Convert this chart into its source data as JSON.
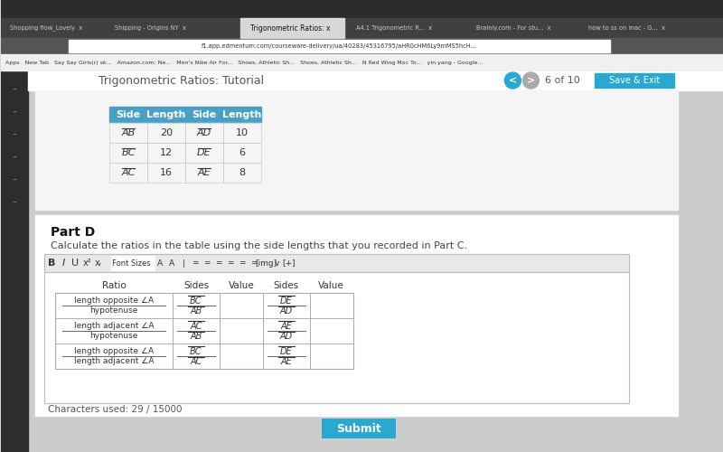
{
  "bg_color": "#e8e8e8",
  "page_bg": "#f0f0f0",
  "browser_bar_color": "#3c3c3c",
  "title": "Trigonometric Ratios: Tutorial",
  "nav_text": "6 of 10",
  "top_table": {
    "headers": [
      "Side",
      "Length",
      "Side",
      "Length"
    ],
    "header_bg": "#4a9fc4",
    "header_fg": "white",
    "rows": [
      [
        "AB",
        "20",
        "AD",
        "10"
      ],
      [
        "BC",
        "12",
        "DE",
        "6"
      ],
      [
        "AC",
        "16",
        "AE",
        "8"
      ]
    ],
    "overline_cells": [
      0,
      2
    ]
  },
  "part_d_label": "Part D",
  "part_d_desc": "Calculate the ratios in the table using the side lengths that you recorded in Part C.",
  "ratio_table": {
    "col_headers": [
      "Ratio",
      "Sides",
      "Value",
      "Sides",
      "Value"
    ],
    "rows": [
      {
        "ratio_top": "length opposite ∠A",
        "ratio_bottom": "hypotenuse",
        "sides1_top": "BC",
        "sides1_bottom": "AB",
        "sides2_top": "DE",
        "sides2_bottom": "AD"
      },
      {
        "ratio_top": "length adjacent ∠A",
        "ratio_bottom": "hypotenuse",
        "sides1_top": "AC",
        "sides1_bottom": "AB",
        "sides2_top": "AE",
        "sides2_bottom": "AD"
      },
      {
        "ratio_top": "length opposite ∠A",
        "ratio_bottom": "length adjacent ∠A",
        "sides1_top": "BC",
        "sides1_bottom": "AC",
        "sides2_top": "DE",
        "sides2_bottom": "AE"
      }
    ]
  },
  "chars_used": "Characters used: 29 / 15000",
  "submit_text": "Submit",
  "submit_bg": "#29a8d0"
}
